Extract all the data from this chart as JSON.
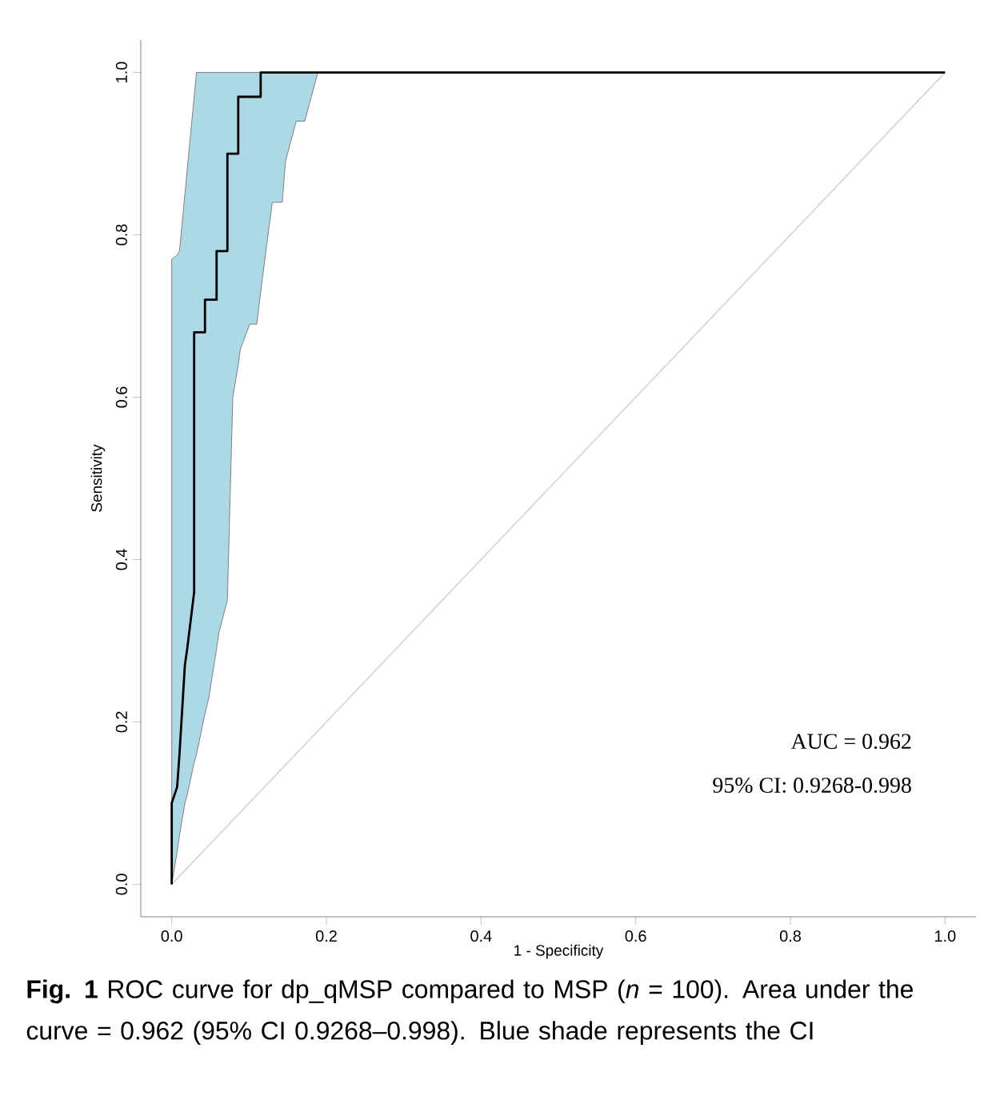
{
  "chart_data": {
    "type": "line",
    "xlabel": "1 - Specificity",
    "ylabel": "Sensitivity",
    "xlim": [
      -0.04,
      1.04
    ],
    "ylim": [
      -0.04,
      1.04
    ],
    "xticks": [
      {
        "value": 0,
        "label": "0.0"
      },
      {
        "value": 0.2,
        "label": "0.2"
      },
      {
        "value": 0.4,
        "label": "0.4"
      },
      {
        "value": 0.6,
        "label": "0.6"
      },
      {
        "value": 0.8,
        "label": "0.8"
      },
      {
        "value": 1,
        "label": "1.0"
      }
    ],
    "yticks": [
      {
        "value": 0,
        "label": "0.0"
      },
      {
        "value": 0.2,
        "label": "0.2"
      },
      {
        "value": 0.4,
        "label": "0.4"
      },
      {
        "value": 0.6,
        "label": "0.6"
      },
      {
        "value": 0.8,
        "label": "0.8"
      },
      {
        "value": 1,
        "label": "1.0"
      }
    ],
    "series": [
      {
        "color": "#d3d3d3",
        "x": [
          0,
          1
        ],
        "values": [
          0,
          1
        ]
      },
      {
        "color": "#000000",
        "x": [
          0,
          0,
          0.007,
          0.01,
          0.017,
          0.02,
          0.029,
          0.029,
          0.032,
          0.043,
          0.043,
          0.048,
          0.058,
          0.058,
          0.061,
          0.072,
          0.072,
          0.075,
          0.079,
          0.086,
          0.086,
          0.089,
          0.101,
          0.11,
          0.115,
          0.115,
          0.13,
          0.143,
          0.147,
          0.161,
          0.172,
          0.189,
          1
        ],
        "values": [
          0,
          0.1,
          0.12,
          0.16,
          0.27,
          0.29,
          0.36,
          0.68,
          0.68,
          0.68,
          0.72,
          0.72,
          0.72,
          0.78,
          0.78,
          0.78,
          0.9,
          0.9,
          0.9,
          0.9,
          0.97,
          0.97,
          0.97,
          0.97,
          0.97,
          1,
          1,
          1,
          1,
          1,
          1,
          1,
          1
        ],
        "lower": [
          0,
          0,
          0.04,
          0.06,
          0.1,
          0.11,
          0.15,
          0.15,
          0.16,
          0.21,
          0.21,
          0.23,
          0.29,
          0.29,
          0.31,
          0.35,
          0.35,
          0.46,
          0.6,
          0.64,
          0.64,
          0.66,
          0.69,
          0.69,
          0.73,
          0.73,
          0.84,
          0.84,
          0.89,
          0.94,
          0.94,
          1,
          null
        ],
        "upper": [
          0.77,
          0.77,
          0.775,
          0.78,
          0.85,
          0.88,
          0.97,
          0.97,
          1,
          1,
          1,
          1,
          1,
          1,
          1,
          1,
          1,
          1,
          1,
          1,
          1,
          1,
          1,
          1,
          1,
          1,
          1,
          1,
          1,
          1,
          1,
          1,
          null
        ]
      }
    ],
    "annotations": [
      "AUC = 0.962",
      "95% CI: 0.9268-0.998",
      "**Fig. 1** ROC curve for dp_qMSP compared to MSP (*n* = 100). Area under the curve = 0.962 (95% CI 0.9268–0.998). Blue shade represents the CI"
    ]
  }
}
